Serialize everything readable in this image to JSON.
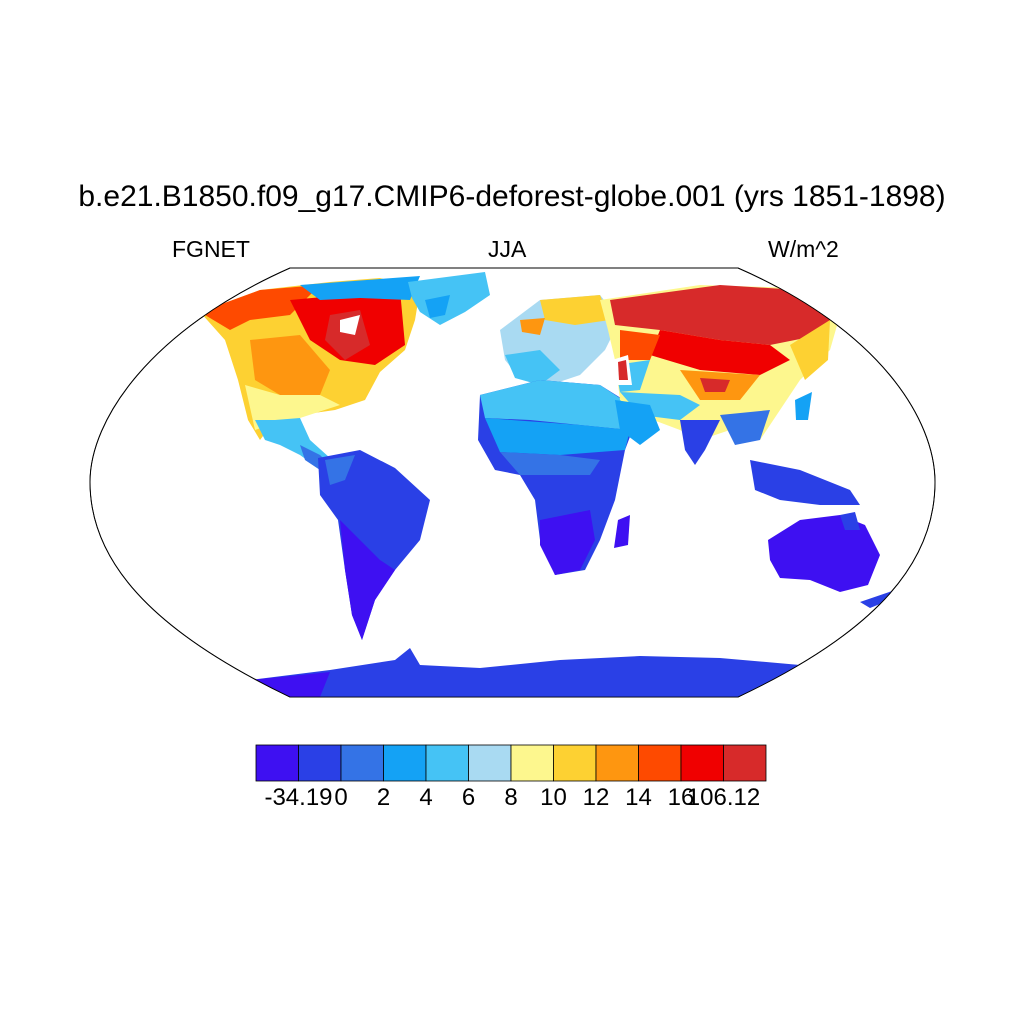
{
  "title": "b.e21.B1850.f09_g17.CMIP6-deforest-globe.001 (yrs 1851-1898)",
  "subtitle_left": "FGNET",
  "subtitle_center": "JJA",
  "subtitle_right": "W/m^2",
  "colorbar": {
    "colors": [
      "#3e10f2",
      "#2a40e6",
      "#3473e6",
      "#14a2f5",
      "#45c3f5",
      "#a9daf2",
      "#fdf78e",
      "#fdd132",
      "#fe9610",
      "#fe4a00",
      "#f00000",
      "#d72a2a"
    ],
    "labels": [
      "-34.19",
      "0",
      "2",
      "4",
      "6",
      "8",
      "10",
      "12",
      "14",
      "16",
      "106.12"
    ]
  }
}
